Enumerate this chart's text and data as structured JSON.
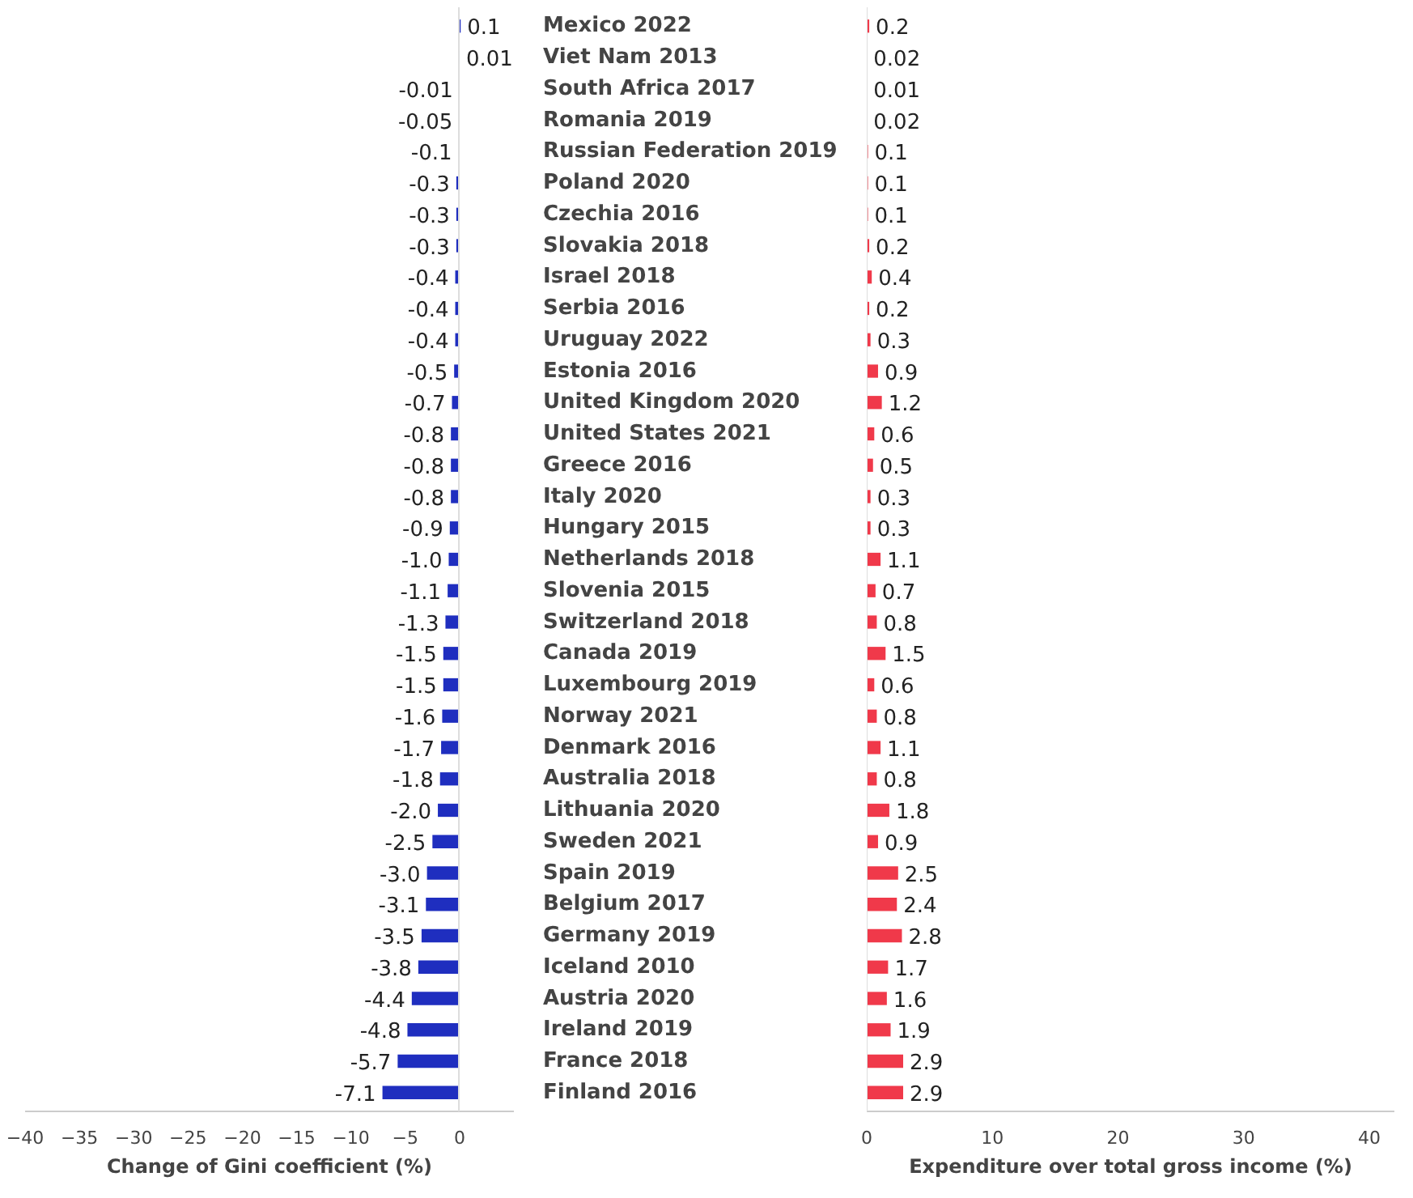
{
  "chart_data": [
    {
      "type": "bar",
      "orientation": "horizontal",
      "xlabel": "Change of Gini coefficient (%)",
      "color": "#1f2ebf",
      "categories": [
        "Mexico 2022",
        "Viet Nam 2013",
        "South Africa 2017",
        "Romania 2019",
        "Russian Federation 2019",
        "Poland 2020",
        "Czechia 2016",
        "Slovakia 2018",
        "Israel 2018",
        "Serbia 2016",
        "Uruguay 2022",
        "Estonia 2016",
        "United Kingdom 2020",
        "United States 2021",
        "Greece 2016",
        "Italy 2020",
        "Hungary 2015",
        "Netherlands 2018",
        "Slovenia 2015",
        "Switzerland 2018",
        "Canada 2019",
        "Luxembourg 2019",
        "Norway 2021",
        "Denmark 2016",
        "Australia 2018",
        "Lithuania 2020",
        "Sweden 2021",
        "Spain 2019",
        "Belgium 2017",
        "Germany 2019",
        "Iceland 2010",
        "Austria 2020",
        "Ireland 2019",
        "France 2018",
        "Finland 2016"
      ],
      "values": [
        0.1,
        0.01,
        -0.01,
        -0.05,
        -0.1,
        -0.3,
        -0.3,
        -0.3,
        -0.4,
        -0.4,
        -0.4,
        -0.5,
        -0.7,
        -0.8,
        -0.8,
        -0.8,
        -0.9,
        -1.0,
        -1.1,
        -1.3,
        -1.5,
        -1.5,
        -1.6,
        -1.7,
        -1.8,
        -2.0,
        -2.5,
        -3.0,
        -3.1,
        -3.5,
        -3.8,
        -4.4,
        -4.8,
        -5.7,
        -7.1
      ],
      "value_labels": [
        "0.1",
        "0.01",
        "-0.01",
        "-0.05",
        "-0.1",
        "-0.3",
        "-0.3",
        "-0.3",
        "-0.4",
        "-0.4",
        "-0.4",
        "-0.5",
        "-0.7",
        "-0.8",
        "-0.8",
        "-0.8",
        "-0.9",
        "-1.0",
        "-1.1",
        "-1.3",
        "-1.5",
        "-1.5",
        "-1.6",
        "-1.7",
        "-1.8",
        "-2.0",
        "-2.5",
        "-3.0",
        "-3.1",
        "-3.5",
        "-3.8",
        "-4.4",
        "-4.8",
        "-5.7",
        "-7.1"
      ],
      "xlim": [
        -40,
        5
      ],
      "xticks": [
        -40,
        -35,
        -30,
        -25,
        -20,
        -15,
        -10,
        -5,
        0
      ]
    },
    {
      "type": "bar",
      "orientation": "horizontal",
      "xlabel": "Expenditure over total gross income (%)",
      "tick_labels": "x",
      "color": "#f0394a",
      "categories": [
        null,
        null,
        null,
        null,
        null,
        null,
        null,
        null,
        null,
        null,
        null,
        null,
        null,
        null,
        null,
        null,
        null,
        null,
        null,
        null,
        null,
        null,
        null,
        null,
        null,
        null,
        null,
        null,
        null,
        null,
        null,
        null,
        null,
        null,
        null
      ],
      "values": [
        0.2,
        0.02,
        0.01,
        0.02,
        0.1,
        0.1,
        0.1,
        0.2,
        0.4,
        0.2,
        0.3,
        0.9,
        1.2,
        0.6,
        0.5,
        0.3,
        0.3,
        1.1,
        0.7,
        0.8,
        1.5,
        0.6,
        0.8,
        1.1,
        0.8,
        1.8,
        0.9,
        2.5,
        2.4,
        2.8,
        1.7,
        1.6,
        1.9,
        2.9,
        2.9
      ],
      "value_labels": [
        "0.2",
        "0.02",
        "0.01",
        "0.02",
        "0.1",
        "0.1",
        "0.1",
        "0.2",
        "0.4",
        "0.2",
        "0.3",
        "0.9",
        "1.2",
        "0.6",
        "0.5",
        "0.3",
        "0.3",
        "1.1",
        "0.7",
        "0.8",
        "1.5",
        "0.6",
        "0.8",
        "1.1",
        "0.8",
        "1.8",
        "0.9",
        "2.5",
        "2.4",
        "2.8",
        "1.7",
        "1.6",
        "1.9",
        "2.9",
        "2.9"
      ],
      "xlim": [
        0,
        42
      ],
      "xticks": [
        0,
        10,
        20,
        30,
        40
      ]
    }
  ]
}
